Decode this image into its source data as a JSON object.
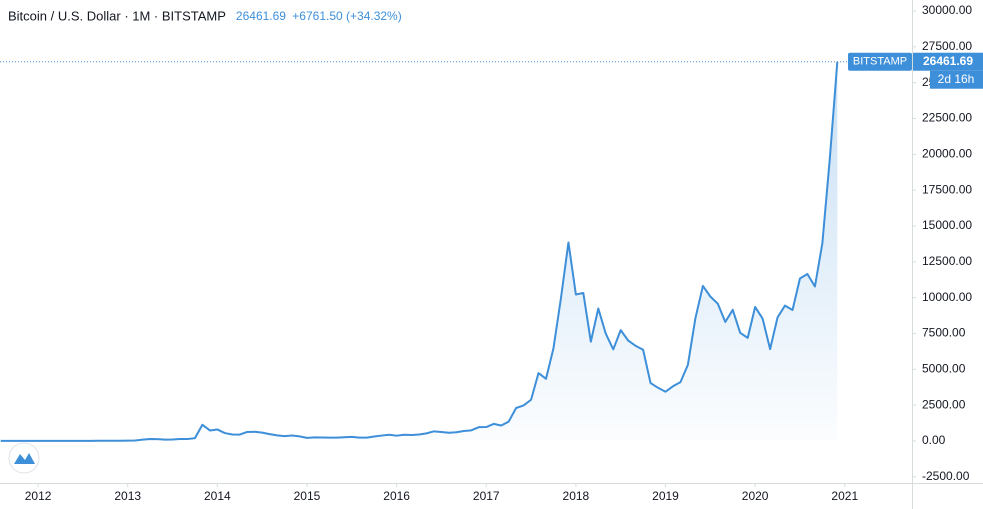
{
  "chart_data": {
    "type": "area",
    "symbol": "Bitcoin / U.S. Dollar · 1M · BITSTAMP",
    "change": "+6761.50 (+34.32%)",
    "exchange_tag": "BITSTAMP",
    "countdown": "2d 16h",
    "color": "#3d8fd9",
    "x": [
      2011.583,
      2011.667,
      2011.75,
      2011.833,
      2011.917,
      2012,
      2012.083,
      2012.167,
      2012.25,
      2012.333,
      2012.417,
      2012.5,
      2012.583,
      2012.667,
      2012.75,
      2012.833,
      2012.917,
      2013,
      2013.083,
      2013.167,
      2013.25,
      2013.333,
      2013.417,
      2013.5,
      2013.583,
      2013.667,
      2013.75,
      2013.833,
      2013.917,
      2014,
      2014.083,
      2014.167,
      2014.25,
      2014.333,
      2014.417,
      2014.5,
      2014.583,
      2014.667,
      2014.75,
      2014.833,
      2014.917,
      2015,
      2015.083,
      2015.167,
      2015.25,
      2015.333,
      2015.417,
      2015.5,
      2015.583,
      2015.667,
      2015.75,
      2015.833,
      2015.917,
      2016,
      2016.083,
      2016.167,
      2016.25,
      2016.333,
      2016.417,
      2016.5,
      2016.583,
      2016.667,
      2016.75,
      2016.833,
      2016.917,
      2017,
      2017.083,
      2017.167,
      2017.25,
      2017.333,
      2017.417,
      2017.5,
      2017.583,
      2017.667,
      2017.75,
      2017.833,
      2017.917,
      2018,
      2018.083,
      2018.167,
      2018.25,
      2018.333,
      2018.417,
      2018.5,
      2018.583,
      2018.667,
      2018.75,
      2018.833,
      2018.917,
      2019,
      2019.083,
      2019.167,
      2019.25,
      2019.333,
      2019.417,
      2019.5,
      2019.583,
      2019.667,
      2019.75,
      2019.833,
      2019.917,
      2020,
      2020.083,
      2020.167,
      2020.25,
      2020.333,
      2020.417,
      2020.5,
      2020.583,
      2020.667,
      2020.75,
      2020.833,
      2020.917
    ],
    "values": [
      8.2,
      5.1,
      3.2,
      3.0,
      4.7,
      5.5,
      4.9,
      4.9,
      5.0,
      5.2,
      6.7,
      9.4,
      10.2,
      12.4,
      11.2,
      12.6,
      13.5,
      20.4,
      33.4,
      93,
      139,
      129,
      97,
      106,
      135,
      133,
      198,
      1129,
      732,
      803,
      550,
      450,
      445,
      628,
      640,
      580,
      478,
      387,
      338,
      378,
      320,
      217,
      254,
      244,
      236,
      230,
      263,
      284,
      230,
      236,
      314,
      377,
      430,
      368,
      437,
      416,
      448,
      531,
      673,
      624,
      573,
      608,
      698,
      742,
      963,
      970,
      1190,
      1080,
      1348,
      2300,
      2480,
      2875,
      4735,
      4338,
      6468,
      9947,
      13850,
      10221,
      10326,
      6926,
      9241,
      7494,
      6391,
      7735,
      7010,
      6635,
      6365,
      4040,
      3710,
      3437,
      3817,
      4103,
      5320,
      8550,
      10817,
      10080,
      9580,
      8300,
      9152,
      7546,
      7194,
      9350,
      8543,
      6410,
      8620,
      9446,
      9135,
      11333,
      11650,
      10777,
      13805,
      19700,
      26461.69
    ],
    "xlim": [
      2011.575,
      2021.75
    ],
    "xticks": [
      2012,
      2013,
      2014,
      2015,
      2016,
      2017,
      2018,
      2019,
      2020,
      2021
    ],
    "ylim": [
      -2933,
      30768
    ],
    "yticks": [
      {
        "value": -2500,
        "label": "-2500.00"
      },
      {
        "value": 0,
        "label": "0.00"
      },
      {
        "value": 2500,
        "label": "2500.00"
      },
      {
        "value": 5000,
        "label": "5000.00"
      },
      {
        "value": 7500,
        "label": "7500.00"
      },
      {
        "value": 10000,
        "label": "10000.00"
      },
      {
        "value": 12500,
        "label": "12500.00"
      },
      {
        "value": 15000,
        "label": "15000.00"
      },
      {
        "value": 17500,
        "label": "17500.00"
      },
      {
        "value": 20000,
        "label": "20000.00"
      },
      {
        "value": 22500,
        "label": "22500.00"
      },
      {
        "value": 25000,
        "label": "25000.00"
      },
      {
        "value": 27500,
        "label": "27500.00"
      },
      {
        "value": 30000,
        "label": "30000.00"
      }
    ]
  }
}
